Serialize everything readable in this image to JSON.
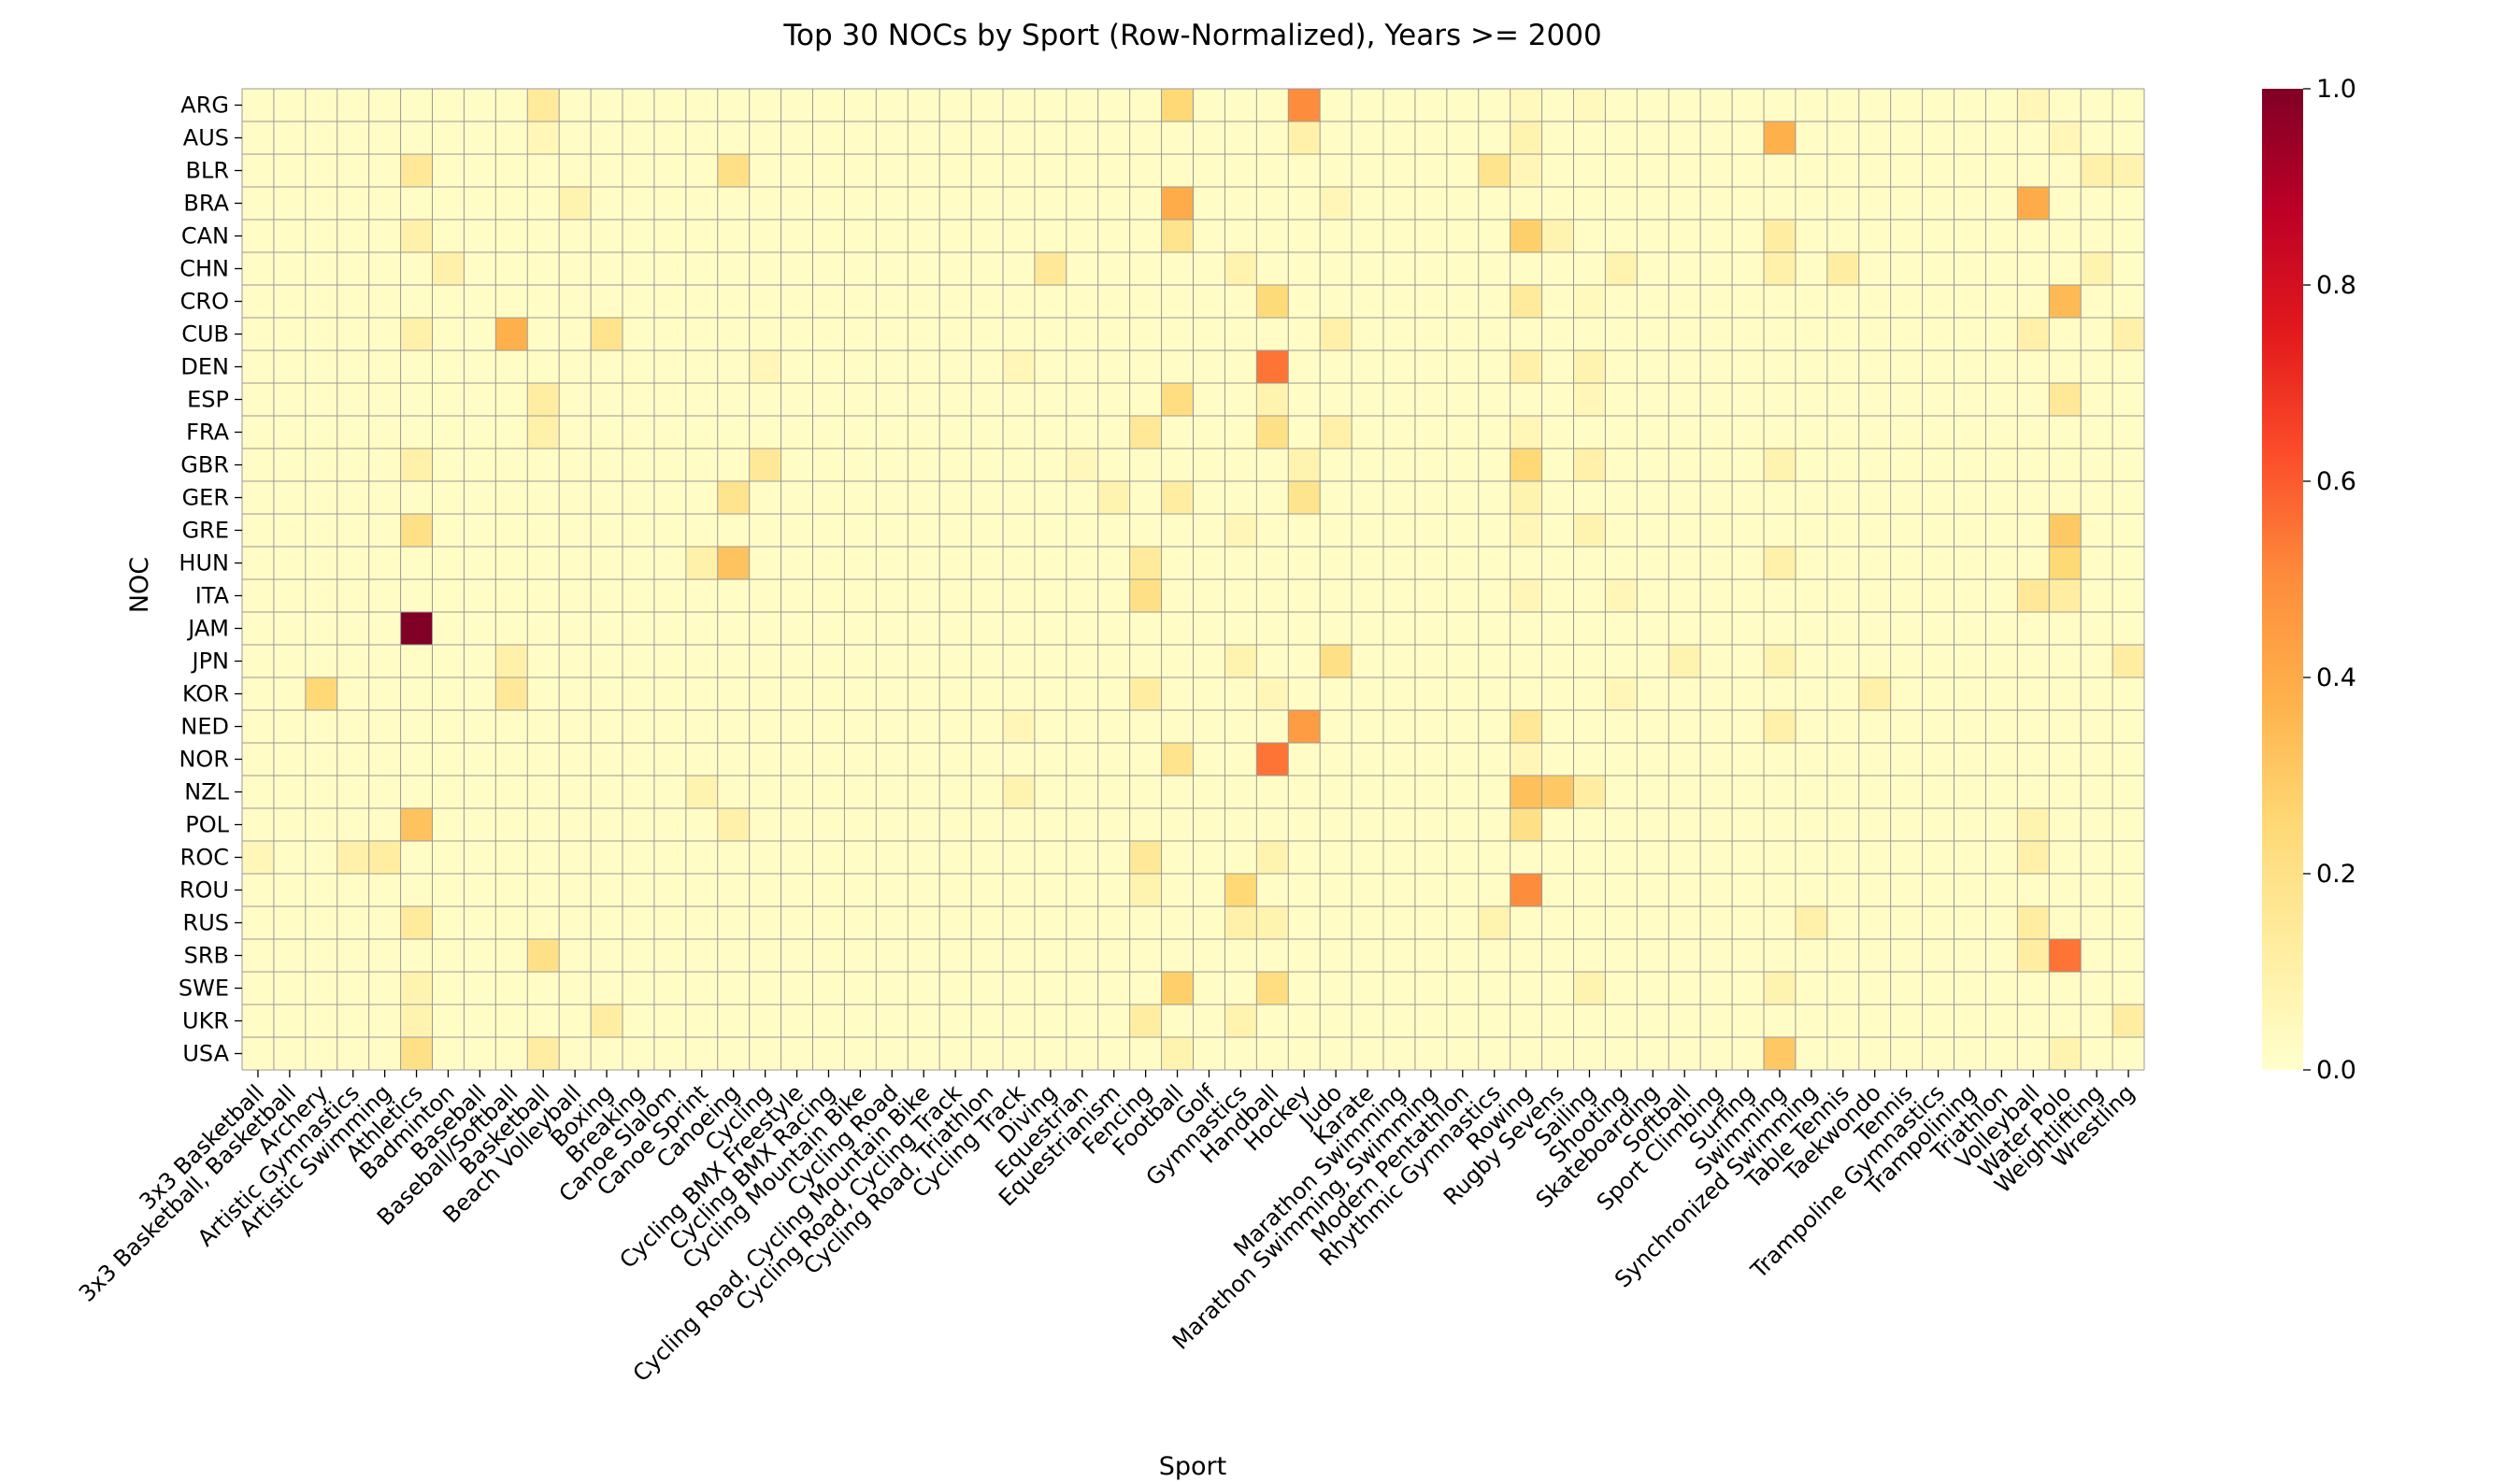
{
  "chart_data": {
    "type": "heatmap",
    "title": "Top 30 NOCs by Sport (Row-Normalized), Years >= 2000",
    "xlabel": "Sport",
    "ylabel": "NOC",
    "colormap": "YlOrRd",
    "color_range": [
      0.0,
      1.0
    ],
    "colorbar_ticks": [
      "0.0",
      "0.2",
      "0.4",
      "0.6",
      "0.8",
      "1.0"
    ],
    "grid": true,
    "colors": {
      "low": "#ffffcc",
      "high": "#800026",
      "gridline": "#999999"
    },
    "y_categories": [
      "ARG",
      "AUS",
      "BLR",
      "BRA",
      "CAN",
      "CHN",
      "CRO",
      "CUB",
      "DEN",
      "ESP",
      "FRA",
      "GBR",
      "GER",
      "GRE",
      "HUN",
      "ITA",
      "JAM",
      "JPN",
      "KOR",
      "NED",
      "NOR",
      "NZL",
      "POL",
      "ROC",
      "ROU",
      "RUS",
      "SRB",
      "SWE",
      "UKR",
      "USA"
    ],
    "x_categories": [
      "3x3 Basketball",
      "3x3 Basketball, Basketball",
      "Archery",
      "Artistic Gymnastics",
      "Artistic Swimming",
      "Athletics",
      "Badminton",
      "Baseball",
      "Baseball/Softball",
      "Basketball",
      "Beach Volleyball",
      "Boxing",
      "Breaking",
      "Canoe Slalom",
      "Canoe Sprint",
      "Canoeing",
      "Cycling",
      "Cycling BMX Freestyle",
      "Cycling BMX Racing",
      "Cycling Mountain Bike",
      "Cycling Road",
      "Cycling Road, Cycling Mountain Bike",
      "Cycling Road, Cycling Track",
      "Cycling Road, Triathlon",
      "Cycling Track",
      "Diving",
      "Equestrian",
      "Equestrianism",
      "Fencing",
      "Football",
      "Golf",
      "Gymnastics",
      "Handball",
      "Hockey",
      "Judo",
      "Karate",
      "Marathon Swimming",
      "Marathon Swimming, Swimming",
      "Modern Pentathlon",
      "Rhythmic Gymnastics",
      "Rowing",
      "Rugby Sevens",
      "Sailing",
      "Shooting",
      "Skateboarding",
      "Softball",
      "Sport Climbing",
      "Surfing",
      "Swimming",
      "Synchronized Swimming",
      "Table Tennis",
      "Taekwondo",
      "Tennis",
      "Trampoline Gymnastics",
      "Trampolining",
      "Triathlon",
      "Volleyball",
      "Water Polo",
      "Weightlifting",
      "Wrestling"
    ],
    "default_value": 0.02,
    "cells": [
      [
        "ARG",
        "Basketball",
        0.14
      ],
      [
        "ARG",
        "Football",
        0.25
      ],
      [
        "ARG",
        "Hockey",
        0.5
      ],
      [
        "ARG",
        "Rowing",
        0.04
      ],
      [
        "ARG",
        "Sailing",
        0.04
      ],
      [
        "ARG",
        "Volleyball",
        0.06
      ],
      [
        "AUS",
        "Hockey",
        0.1
      ],
      [
        "AUS",
        "Swimming",
        0.38
      ],
      [
        "AUS",
        "Rowing",
        0.08
      ],
      [
        "AUS",
        "Basketball",
        0.06
      ],
      [
        "AUS",
        "Water Polo",
        0.06
      ],
      [
        "BLR",
        "Athletics",
        0.15
      ],
      [
        "BLR",
        "Canoeing",
        0.2
      ],
      [
        "BLR",
        "Rhythmic Gymnastics",
        0.18
      ],
      [
        "BLR",
        "Rowing",
        0.06
      ],
      [
        "BLR",
        "Weightlifting",
        0.1
      ],
      [
        "BLR",
        "Wrestling",
        0.08
      ],
      [
        "BRA",
        "Football",
        0.4
      ],
      [
        "BRA",
        "Volleyball",
        0.4
      ],
      [
        "BRA",
        "Beach Volleyball",
        0.08
      ],
      [
        "BRA",
        "Judo",
        0.06
      ],
      [
        "CAN",
        "Athletics",
        0.1
      ],
      [
        "CAN",
        "Football",
        0.18
      ],
      [
        "CAN",
        "Rowing",
        0.28
      ],
      [
        "CAN",
        "Swimming",
        0.12
      ],
      [
        "CAN",
        "Rugby Sevens",
        0.08
      ],
      [
        "CHN",
        "Diving",
        0.15
      ],
      [
        "CHN",
        "Badminton",
        0.1
      ],
      [
        "CHN",
        "Table Tennis",
        0.12
      ],
      [
        "CHN",
        "Swimming",
        0.1
      ],
      [
        "CHN",
        "Gymnastics",
        0.08
      ],
      [
        "CHN",
        "Shooting",
        0.08
      ],
      [
        "CHN",
        "Weightlifting",
        0.08
      ],
      [
        "CRO",
        "Handball",
        0.24
      ],
      [
        "CRO",
        "Water Polo",
        0.35
      ],
      [
        "CRO",
        "Rowing",
        0.14
      ],
      [
        "CRO",
        "Sailing",
        0.04
      ],
      [
        "CUB",
        "Baseball/Softball",
        0.38
      ],
      [
        "CUB",
        "Boxing",
        0.18
      ],
      [
        "CUB",
        "Athletics",
        0.1
      ],
      [
        "CUB",
        "Judo",
        0.1
      ],
      [
        "CUB",
        "Volleyball",
        0.1
      ],
      [
        "CUB",
        "Wrestling",
        0.1
      ],
      [
        "DEN",
        "Handball",
        0.55
      ],
      [
        "DEN",
        "Rowing",
        0.1
      ],
      [
        "DEN",
        "Cycling Track",
        0.06
      ],
      [
        "DEN",
        "Sailing",
        0.08
      ],
      [
        "DEN",
        "Cycling",
        0.06
      ],
      [
        "ESP",
        "Basketball",
        0.12
      ],
      [
        "ESP",
        "Football",
        0.22
      ],
      [
        "ESP",
        "Water Polo",
        0.15
      ],
      [
        "ESP",
        "Handball",
        0.08
      ],
      [
        "ESP",
        "Sailing",
        0.06
      ],
      [
        "FRA",
        "Basketball",
        0.1
      ],
      [
        "FRA",
        "Fencing",
        0.15
      ],
      [
        "FRA",
        "Handball",
        0.2
      ],
      [
        "FRA",
        "Judo",
        0.1
      ],
      [
        "FRA",
        "Rowing",
        0.06
      ],
      [
        "GBR",
        "Cycling",
        0.15
      ],
      [
        "GBR",
        "Rowing",
        0.25
      ],
      [
        "GBR",
        "Athletics",
        0.1
      ],
      [
        "GBR",
        "Sailing",
        0.1
      ],
      [
        "GBR",
        "Swimming",
        0.08
      ],
      [
        "GBR",
        "Hockey",
        0.08
      ],
      [
        "GBR",
        "Equestrian",
        0.05
      ],
      [
        "GER",
        "Hockey",
        0.18
      ],
      [
        "GER",
        "Canoeing",
        0.18
      ],
      [
        "GER",
        "Rowing",
        0.08
      ],
      [
        "GER",
        "Football",
        0.12
      ],
      [
        "GER",
        "Equestrianism",
        0.08
      ],
      [
        "GRE",
        "Water Polo",
        0.3
      ],
      [
        "GRE",
        "Athletics",
        0.2
      ],
      [
        "GRE",
        "Sailing",
        0.08
      ],
      [
        "GRE",
        "Gymnastics",
        0.06
      ],
      [
        "GRE",
        "Rowing",
        0.06
      ],
      [
        "HUN",
        "Canoeing",
        0.32
      ],
      [
        "HUN",
        "Water Polo",
        0.25
      ],
      [
        "HUN",
        "Fencing",
        0.14
      ],
      [
        "HUN",
        "Swimming",
        0.1
      ],
      [
        "HUN",
        "Canoe Sprint",
        0.1
      ],
      [
        "ITA",
        "Fencing",
        0.2
      ],
      [
        "ITA",
        "Volleyball",
        0.15
      ],
      [
        "ITA",
        "Water Polo",
        0.12
      ],
      [
        "ITA",
        "Shooting",
        0.06
      ],
      [
        "ITA",
        "Rowing",
        0.06
      ],
      [
        "JAM",
        "Athletics",
        1.0
      ],
      [
        "JPN",
        "Judo",
        0.2
      ],
      [
        "JPN",
        "Wrestling",
        0.12
      ],
      [
        "JPN",
        "Baseball/Softball",
        0.1
      ],
      [
        "JPN",
        "Swimming",
        0.08
      ],
      [
        "JPN",
        "Gymnastics",
        0.08
      ],
      [
        "JPN",
        "Softball",
        0.08
      ],
      [
        "KOR",
        "Archery",
        0.25
      ],
      [
        "KOR",
        "Baseball/Softball",
        0.15
      ],
      [
        "KOR",
        "Fencing",
        0.12
      ],
      [
        "KOR",
        "Taekwondo",
        0.1
      ],
      [
        "KOR",
        "Handball",
        0.06
      ],
      [
        "KOR",
        "Shooting",
        0.06
      ],
      [
        "NED",
        "Hockey",
        0.45
      ],
      [
        "NED",
        "Rowing",
        0.15
      ],
      [
        "NED",
        "Swimming",
        0.1
      ],
      [
        "NED",
        "Cycling Track",
        0.06
      ],
      [
        "NOR",
        "Handball",
        0.55
      ],
      [
        "NOR",
        "Football",
        0.18
      ],
      [
        "NOR",
        "Rowing",
        0.06
      ],
      [
        "NZL",
        "Rowing",
        0.33
      ],
      [
        "NZL",
        "Rugby Sevens",
        0.3
      ],
      [
        "NZL",
        "Sailing",
        0.12
      ],
      [
        "NZL",
        "Canoe Sprint",
        0.08
      ],
      [
        "NZL",
        "Cycling Track",
        0.08
      ],
      [
        "POL",
        "Athletics",
        0.32
      ],
      [
        "POL",
        "Rowing",
        0.2
      ],
      [
        "POL",
        "Canoeing",
        0.1
      ],
      [
        "POL",
        "Volleyball",
        0.08
      ],
      [
        "ROC",
        "Fencing",
        0.15
      ],
      [
        "ROC",
        "Artistic Swimming",
        0.12
      ],
      [
        "ROC",
        "Artistic Gymnastics",
        0.1
      ],
      [
        "ROC",
        "Volleyball",
        0.1
      ],
      [
        "ROC",
        "Handball",
        0.08
      ],
      [
        "ROC",
        "3x3 Basketball",
        0.06
      ],
      [
        "ROU",
        "Rowing",
        0.5
      ],
      [
        "ROU",
        "Gymnastics",
        0.25
      ],
      [
        "ROU",
        "Fencing",
        0.08
      ],
      [
        "RUS",
        "Athletics",
        0.14
      ],
      [
        "RUS",
        "Gymnastics",
        0.1
      ],
      [
        "RUS",
        "Synchronized Swimming",
        0.1
      ],
      [
        "RUS",
        "Volleyball",
        0.12
      ],
      [
        "RUS",
        "Handball",
        0.08
      ],
      [
        "RUS",
        "Rhythmic Gymnastics",
        0.08
      ],
      [
        "SRB",
        "Water Polo",
        0.55
      ],
      [
        "SRB",
        "Basketball",
        0.2
      ],
      [
        "SRB",
        "Volleyball",
        0.12
      ],
      [
        "SWE",
        "Football",
        0.28
      ],
      [
        "SWE",
        "Handball",
        0.22
      ],
      [
        "SWE",
        "Sailing",
        0.08
      ],
      [
        "SWE",
        "Athletics",
        0.08
      ],
      [
        "SWE",
        "Swimming",
        0.08
      ],
      [
        "UKR",
        "Fencing",
        0.12
      ],
      [
        "UKR",
        "Boxing",
        0.12
      ],
      [
        "UKR",
        "Wrestling",
        0.12
      ],
      [
        "UKR",
        "Gymnastics",
        0.08
      ],
      [
        "UKR",
        "Athletics",
        0.08
      ],
      [
        "USA",
        "Swimming",
        0.3
      ],
      [
        "USA",
        "Athletics",
        0.2
      ],
      [
        "USA",
        "Basketball",
        0.12
      ],
      [
        "USA",
        "Football",
        0.08
      ],
      [
        "USA",
        "Water Polo",
        0.08
      ]
    ]
  }
}
